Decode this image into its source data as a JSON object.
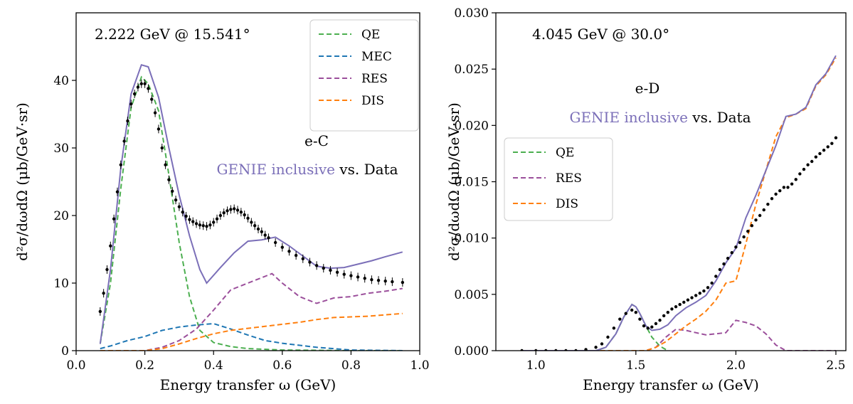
{
  "colors": {
    "QE": "#4caf50",
    "MEC": "#1f77b4",
    "RES": "#9b4f9b",
    "DIS": "#ff7f0e",
    "GENIE": "#7b6fb8",
    "Data": "#000000"
  },
  "chart_data": [
    {
      "type": "line",
      "annotation": "2.222 GeV @ 15.541°",
      "target_label": "e-C",
      "caption_genie": "GENIE inclusive",
      "caption_rest": " vs. Data",
      "xlabel": "Energy transfer ω (GeV)",
      "ylabel": "d²σ/dωdΩ (μb/GeV·sr)",
      "xlim": [
        0.0,
        1.0
      ],
      "ylim": [
        0,
        50
      ],
      "xticks": [
        0.0,
        0.2,
        0.4,
        0.6,
        0.8,
        1.0
      ],
      "xtick_labels": [
        "0.0",
        "0.2",
        "0.4",
        "0.6",
        "0.8",
        "1.0"
      ],
      "yticks": [
        0,
        10,
        20,
        30,
        40
      ],
      "ytick_labels": [
        "0",
        "10",
        "20",
        "30",
        "40"
      ],
      "legend_position": "top-right",
      "legend": [
        "QE",
        "MEC",
        "RES",
        "DIS"
      ],
      "series": [
        {
          "name": "QE",
          "style": "dashed",
          "x": [
            0.07,
            0.1,
            0.13,
            0.16,
            0.19,
            0.21,
            0.24,
            0.27,
            0.3,
            0.33,
            0.36,
            0.4,
            0.45,
            0.5,
            0.6,
            0.7,
            0.8,
            0.95
          ],
          "y": [
            1.0,
            10.0,
            24.0,
            36.0,
            40.5,
            39.5,
            35.5,
            26.0,
            16.0,
            8.0,
            3.0,
            1.2,
            0.6,
            0.3,
            0.1,
            0.05,
            0.0,
            0.0
          ]
        },
        {
          "name": "MEC",
          "style": "dashed",
          "x": [
            0.07,
            0.1,
            0.15,
            0.2,
            0.25,
            0.3,
            0.35,
            0.4,
            0.45,
            0.5,
            0.55,
            0.6,
            0.7,
            0.8,
            0.95
          ],
          "y": [
            0.3,
            0.7,
            1.5,
            2.1,
            3.0,
            3.5,
            3.8,
            4.0,
            3.2,
            2.3,
            1.5,
            1.1,
            0.5,
            0.1,
            0.0
          ]
        },
        {
          "name": "RES",
          "style": "dashed",
          "x": [
            0.07,
            0.2,
            0.25,
            0.3,
            0.35,
            0.4,
            0.45,
            0.5,
            0.54,
            0.57,
            0.6,
            0.65,
            0.7,
            0.75,
            0.8,
            0.85,
            0.9,
            0.95
          ],
          "y": [
            0.0,
            0.0,
            0.5,
            1.5,
            3.2,
            6.0,
            9.0,
            10.0,
            10.8,
            11.4,
            10.0,
            8.0,
            7.0,
            7.8,
            8.0,
            8.5,
            8.8,
            9.2
          ]
        },
        {
          "name": "DIS",
          "style": "dashed",
          "x": [
            0.07,
            0.2,
            0.25,
            0.3,
            0.35,
            0.4,
            0.45,
            0.5,
            0.55,
            0.6,
            0.65,
            0.7,
            0.75,
            0.8,
            0.85,
            0.9,
            0.95
          ],
          "y": [
            0.0,
            0.0,
            0.3,
            1.0,
            1.8,
            2.5,
            3.0,
            3.3,
            3.6,
            3.9,
            4.2,
            4.6,
            4.9,
            5.0,
            5.1,
            5.3,
            5.5
          ]
        },
        {
          "name": "GENIE inclusive",
          "style": "solid",
          "x": [
            0.07,
            0.1,
            0.13,
            0.16,
            0.19,
            0.21,
            0.24,
            0.27,
            0.3,
            0.33,
            0.36,
            0.38,
            0.42,
            0.46,
            0.5,
            0.54,
            0.58,
            0.62,
            0.66,
            0.7,
            0.74,
            0.78,
            0.82,
            0.86,
            0.9,
            0.95
          ],
          "y": [
            1.0,
            12.0,
            27.0,
            38.0,
            42.3,
            42.0,
            37.5,
            30.0,
            23.0,
            17.0,
            12.0,
            10.0,
            12.3,
            14.5,
            16.2,
            16.4,
            16.8,
            15.5,
            14.0,
            12.5,
            12.2,
            12.3,
            12.8,
            13.3,
            13.9,
            14.6
          ]
        },
        {
          "name": "Data",
          "style": "points",
          "x": [
            0.07,
            0.08,
            0.09,
            0.1,
            0.11,
            0.12,
            0.13,
            0.14,
            0.15,
            0.16,
            0.17,
            0.18,
            0.19,
            0.2,
            0.21,
            0.22,
            0.23,
            0.24,
            0.25,
            0.26,
            0.27,
            0.28,
            0.29,
            0.3,
            0.31,
            0.32,
            0.33,
            0.34,
            0.35,
            0.36,
            0.37,
            0.38,
            0.39,
            0.4,
            0.41,
            0.42,
            0.43,
            0.44,
            0.45,
            0.46,
            0.47,
            0.48,
            0.49,
            0.5,
            0.51,
            0.52,
            0.53,
            0.54,
            0.55,
            0.56,
            0.58,
            0.6,
            0.62,
            0.64,
            0.66,
            0.68,
            0.7,
            0.72,
            0.74,
            0.76,
            0.78,
            0.8,
            0.82,
            0.84,
            0.86,
            0.88,
            0.9,
            0.92,
            0.95
          ],
          "y": [
            5.8,
            8.5,
            12.0,
            15.5,
            19.5,
            23.5,
            27.5,
            31.0,
            34.0,
            36.5,
            38.0,
            39.0,
            39.5,
            39.5,
            38.8,
            37.2,
            35.2,
            32.8,
            30.0,
            27.5,
            25.3,
            23.6,
            22.3,
            21.3,
            20.5,
            19.9,
            19.4,
            19.1,
            18.8,
            18.6,
            18.5,
            18.4,
            18.6,
            19.0,
            19.5,
            20.0,
            20.4,
            20.7,
            20.9,
            21.0,
            20.8,
            20.5,
            20.1,
            19.6,
            19.0,
            18.5,
            18.0,
            17.6,
            17.1,
            16.7,
            16.0,
            15.3,
            14.7,
            14.1,
            13.6,
            13.1,
            12.6,
            12.2,
            11.9,
            11.6,
            11.3,
            11.1,
            10.9,
            10.7,
            10.5,
            10.4,
            10.3,
            10.2,
            10.1
          ]
        }
      ]
    },
    {
      "type": "line",
      "annotation": "4.045 GeV @ 30.0°",
      "target_label": "e-D",
      "caption_genie": "GENIE inclusive",
      "caption_rest": " vs. Data",
      "xlabel": "Energy transfer ω (GeV)",
      "ylabel": "d²σ/dωdΩ (μb/GeV·sr)",
      "xlim": [
        0.8,
        2.55
      ],
      "ylim": [
        0.0,
        0.03
      ],
      "xticks": [
        1.0,
        1.5,
        2.0,
        2.5
      ],
      "xtick_labels": [
        "1.0",
        "1.5",
        "2.0",
        "2.5"
      ],
      "yticks": [
        0.0,
        0.005,
        0.01,
        0.015,
        0.02,
        0.025,
        0.03
      ],
      "ytick_labels": [
        "0.000",
        "0.005",
        "0.010",
        "0.015",
        "0.020",
        "0.025",
        "0.030"
      ],
      "legend_position": "center-left",
      "legend": [
        "QE",
        "RES",
        "DIS"
      ],
      "series": [
        {
          "name": "QE",
          "style": "dashed",
          "x": [
            0.93,
            1.2,
            1.3,
            1.35,
            1.4,
            1.44,
            1.48,
            1.5,
            1.52,
            1.55,
            1.58,
            1.62,
            1.66
          ],
          "y": [
            0.0,
            0.0,
            0.0,
            0.0003,
            0.0015,
            0.003,
            0.0041,
            0.0039,
            0.0033,
            0.0022,
            0.0012,
            0.0004,
            0.0
          ]
        },
        {
          "name": "RES",
          "style": "dashed",
          "x": [
            0.93,
            1.55,
            1.6,
            1.65,
            1.7,
            1.75,
            1.8,
            1.85,
            1.9,
            1.95,
            2.0,
            2.05,
            2.1,
            2.15,
            2.2,
            2.25,
            2.3,
            2.5
          ],
          "y": [
            0.0,
            0.0,
            0.0003,
            0.0012,
            0.0019,
            0.0018,
            0.0016,
            0.0014,
            0.0015,
            0.0016,
            0.0027,
            0.0025,
            0.0022,
            0.0015,
            0.0005,
            0.0,
            0.0,
            0.0
          ]
        },
        {
          "name": "DIS",
          "style": "dashed",
          "x": [
            0.93,
            1.55,
            1.6,
            1.65,
            1.7,
            1.75,
            1.8,
            1.85,
            1.9,
            1.95,
            2.0,
            2.05,
            2.1,
            2.15,
            2.2,
            2.25,
            2.3,
            2.35,
            2.4,
            2.45,
            2.5
          ],
          "y": [
            0.0,
            0.0,
            0.0003,
            0.0008,
            0.0015,
            0.0022,
            0.0028,
            0.0035,
            0.0045,
            0.006,
            0.0062,
            0.0095,
            0.013,
            0.016,
            0.019,
            0.0207,
            0.021,
            0.0215,
            0.0235,
            0.0245,
            0.026
          ]
        },
        {
          "name": "GENIE inclusive",
          "style": "solid",
          "x": [
            0.93,
            1.2,
            1.3,
            1.35,
            1.4,
            1.44,
            1.48,
            1.5,
            1.52,
            1.55,
            1.58,
            1.62,
            1.66,
            1.7,
            1.75,
            1.8,
            1.85,
            1.9,
            1.95,
            2.0,
            2.05,
            2.1,
            2.15,
            2.2,
            2.25,
            2.3,
            2.35,
            2.4,
            2.45,
            2.5
          ],
          "y": [
            0.0,
            0.0,
            0.0,
            0.0003,
            0.0015,
            0.003,
            0.0041,
            0.0039,
            0.0033,
            0.0022,
            0.0018,
            0.0019,
            0.0023,
            0.0031,
            0.0038,
            0.0043,
            0.0049,
            0.0062,
            0.0078,
            0.0091,
            0.0118,
            0.0138,
            0.016,
            0.0182,
            0.0208,
            0.021,
            0.0216,
            0.0236,
            0.0246,
            0.0262
          ]
        },
        {
          "name": "Data",
          "style": "points",
          "x": [
            0.93,
            1.0,
            1.05,
            1.1,
            1.15,
            1.2,
            1.25,
            1.3,
            1.33,
            1.36,
            1.39,
            1.42,
            1.45,
            1.48,
            1.5,
            1.52,
            1.54,
            1.56,
            1.58,
            1.6,
            1.62,
            1.64,
            1.66,
            1.68,
            1.7,
            1.72,
            1.74,
            1.76,
            1.78,
            1.8,
            1.82,
            1.84,
            1.86,
            1.88,
            1.9,
            1.92,
            1.94,
            1.96,
            1.98,
            2.0,
            2.02,
            2.04,
            2.06,
            2.08,
            2.1,
            2.12,
            2.14,
            2.16,
            2.18,
            2.2,
            2.22,
            2.24,
            2.26,
            2.28,
            2.3,
            2.32,
            2.34,
            2.36,
            2.38,
            2.4,
            2.42,
            2.44,
            2.46,
            2.48,
            2.5
          ],
          "y": [
            0.0,
            0.0,
            0.0,
            0.0,
            0.0,
            0.0,
            0.0001,
            0.0003,
            0.0006,
            0.0012,
            0.002,
            0.0028,
            0.0033,
            0.0036,
            0.0034,
            0.0028,
            0.0022,
            0.002,
            0.0021,
            0.0024,
            0.0027,
            0.0031,
            0.0034,
            0.0037,
            0.0039,
            0.0041,
            0.0043,
            0.0045,
            0.0047,
            0.0049,
            0.0051,
            0.0053,
            0.0056,
            0.006,
            0.0066,
            0.0072,
            0.0077,
            0.0082,
            0.0087,
            0.0092,
            0.0096,
            0.0101,
            0.0106,
            0.0111,
            0.0116,
            0.012,
            0.0125,
            0.013,
            0.0135,
            0.0139,
            0.0142,
            0.0145,
            0.0145,
            0.0148,
            0.0152,
            0.0157,
            0.0161,
            0.0165,
            0.0168,
            0.0172,
            0.0175,
            0.0178,
            0.0181,
            0.0184,
            0.0189
          ]
        }
      ]
    }
  ]
}
